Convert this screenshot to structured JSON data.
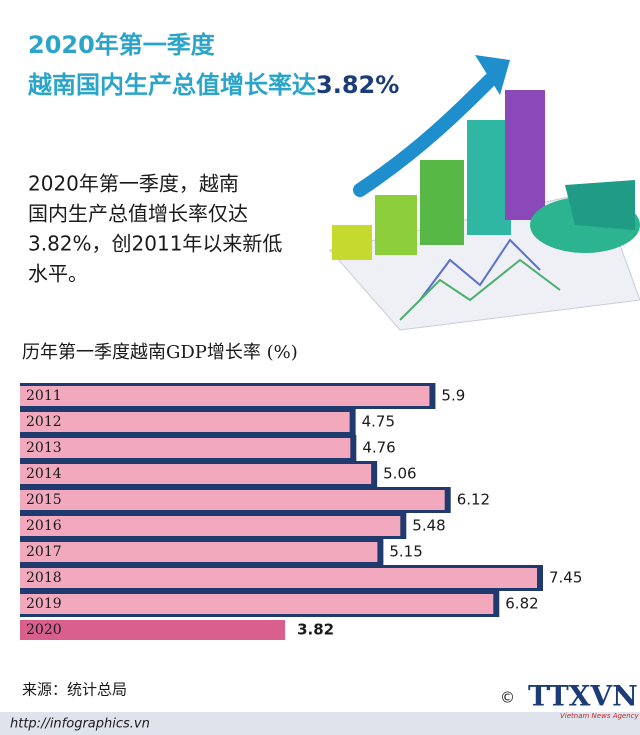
{
  "header": {
    "title_line1": "2020年第一季度",
    "title_line2": "越南国内生产总值增长率达",
    "title_highlight": "3.82%"
  },
  "summary": [
    "2020年第一季度，越南",
    "国内生产总值增长率仅达",
    "3.82%，创2011年以来新低",
    "水平。"
  ],
  "chart_data": {
    "type": "bar",
    "orientation": "horizontal",
    "title": "历年第一季度越南GDP增长率 (%)",
    "categories": [
      "2011",
      "2012",
      "2013",
      "2014",
      "2015",
      "2016",
      "2017",
      "2018",
      "2019",
      "2020"
    ],
    "values": [
      5.9,
      4.75,
      4.76,
      5.06,
      6.12,
      5.48,
      5.15,
      7.45,
      6.82,
      3.82
    ],
    "color": "#f2a9bd",
    "highlight_color": "#d95f8d",
    "highlight_index": 9
  },
  "footer": {
    "source": "来源：统计总局",
    "url": "http://infographics.vn",
    "copyright": "©",
    "agency": "TTXVN",
    "agency_full": "Vietnam News Agency"
  }
}
